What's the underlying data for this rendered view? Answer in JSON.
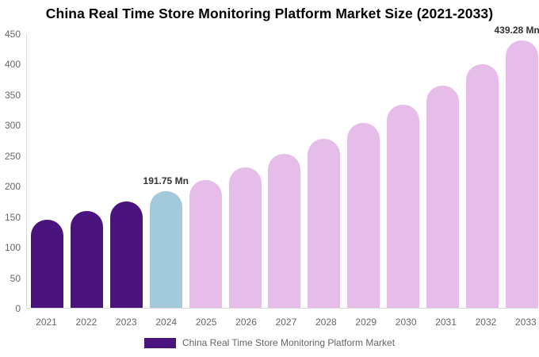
{
  "title": "China Real Time Store Monitoring Platform Market Size (2021-2033)",
  "legend": {
    "label": "China Real Time Store Monitoring Platform Market"
  },
  "colors": {
    "historical": "#4a137e",
    "current_year": "#a3c9dd",
    "forecast": "#e5bde8",
    "axis_line": "#d9d9d9",
    "tick_text": "#666666",
    "annotation_text": "#333333",
    "title_text": "#000000"
  },
  "chart_data": {
    "type": "bar",
    "title": "China Real Time Store Monitoring Platform Market Size (2021-2033)",
    "unit": "Mn",
    "categories": [
      "2021",
      "2022",
      "2023",
      "2024",
      "2025",
      "2026",
      "2027",
      "2028",
      "2029",
      "2030",
      "2031",
      "2032",
      "2033"
    ],
    "values": [
      145.4,
      159.5,
      174.9,
      191.75,
      210.3,
      230.6,
      252.8,
      277.2,
      304.0,
      333.3,
      365.5,
      400.7,
      439.28
    ],
    "bar_roles": [
      "historical",
      "historical",
      "historical",
      "current_year",
      "forecast",
      "forecast",
      "forecast",
      "forecast",
      "forecast",
      "forecast",
      "forecast",
      "forecast",
      "forecast"
    ],
    "annotations": [
      {
        "category": "2024",
        "text": "191.75 Mn"
      },
      {
        "category": "2033",
        "text": "439.28 Mn"
      }
    ],
    "xlabel": "",
    "ylabel": "",
    "ylim": [
      0,
      450
    ],
    "yticks": [
      0,
      50,
      100,
      150,
      200,
      250,
      300,
      350,
      400,
      450
    ],
    "grid": false,
    "legend_position": "bottom",
    "legend_entries": [
      "China Real Time Store Monitoring Platform Market"
    ]
  }
}
